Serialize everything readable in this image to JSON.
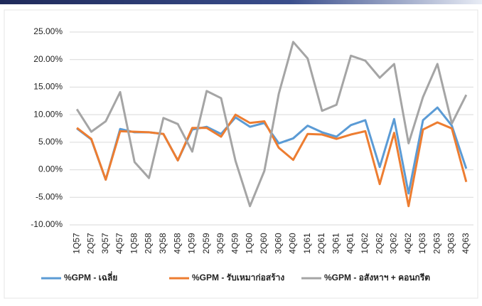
{
  "chart_data": {
    "type": "line",
    "categories": [
      "1Q57",
      "2Q57",
      "3Q57",
      "4Q57",
      "1Q58",
      "2Q58",
      "3Q58",
      "4Q58",
      "1Q59",
      "2Q59",
      "3Q59",
      "4Q59",
      "1Q60",
      "2Q60",
      "3Q60",
      "4Q60",
      "1Q61",
      "2Q61",
      "3Q61",
      "4Q61",
      "1Q62",
      "2Q62",
      "3Q62",
      "4Q62",
      "1Q63",
      "2Q63",
      "3Q63",
      "4Q63"
    ],
    "series": [
      {
        "name": "%GPM - เฉลี่ย",
        "color": "#5b9bd5",
        "values": [
          7.5,
          5.5,
          -1.8,
          7.4,
          6.8,
          6.8,
          6.5,
          1.7,
          7.3,
          7.8,
          6.5,
          9.5,
          7.8,
          8.5,
          4.8,
          5.7,
          8.0,
          6.8,
          6.0,
          8.1,
          9.0,
          0.5,
          9.2,
          -4.3,
          9.0,
          11.3,
          8.0,
          0.2
        ]
      },
      {
        "name": "%GPM - รับเหมาก่อสร้าง",
        "color": "#ed7d31",
        "values": [
          7.6,
          5.6,
          -1.8,
          7.0,
          6.9,
          6.8,
          6.5,
          1.7,
          7.6,
          7.6,
          6.0,
          10.0,
          8.5,
          8.8,
          4.0,
          1.8,
          6.5,
          6.4,
          5.6,
          6.4,
          7.0,
          -2.6,
          6.7,
          -6.6,
          7.3,
          8.6,
          7.5,
          -2.2
        ]
      },
      {
        "name": "%GPM - อสังหาฯ + คอนกรีต",
        "color": "#a5a5a5",
        "values": [
          11.0,
          6.9,
          8.8,
          14.1,
          1.4,
          -1.5,
          9.4,
          8.3,
          3.3,
          14.3,
          13.0,
          1.6,
          -6.6,
          -0.2,
          13.8,
          23.2,
          20.2,
          10.7,
          11.8,
          20.7,
          19.8,
          16.7,
          19.2,
          4.8,
          13.2,
          19.2,
          8.4,
          13.6
        ]
      }
    ],
    "ylim": [
      -10,
      25
    ],
    "yticks": [
      {
        "value": -10,
        "label": "-10.00%"
      },
      {
        "value": -5,
        "label": "-5.00%"
      },
      {
        "value": 0,
        "label": "0.00%"
      },
      {
        "value": 5,
        "label": "5.00%"
      },
      {
        "value": 10,
        "label": "10.00%"
      },
      {
        "value": 15,
        "label": "15.00%"
      },
      {
        "value": 20,
        "label": "20.00%"
      },
      {
        "value": 25,
        "label": "25.00%"
      }
    ],
    "grid": true,
    "legend": "bottom"
  }
}
